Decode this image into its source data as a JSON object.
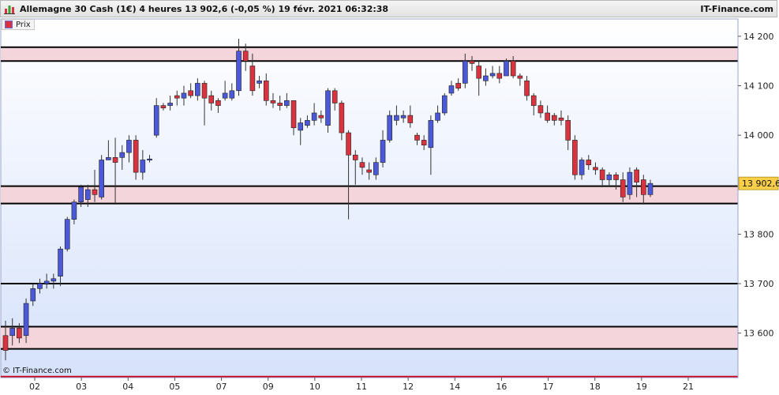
{
  "header": {
    "title": "Allemagne 30 Cash (1€) 4 heures 13 902,6 (-0,05 %) 19 févr. 2021 06:32:38",
    "brand": "IT-Finance.com"
  },
  "legend": {
    "label": "Prix"
  },
  "footer": {
    "copyright": "© IT-Finance.com"
  },
  "colors": {
    "up": "#4b58d8",
    "down": "#d9333f",
    "zone_fill": "#f5d5dc",
    "resistance_line": "#000000",
    "support_line_red": "#d0021b",
    "price_label_bg": "#f9cf4a"
  },
  "chart_data": {
    "type": "candlestick",
    "y_axis": {
      "ticks": [
        {
          "value": 13600,
          "label": "13 600"
        },
        {
          "value": 13700,
          "label": "13 700"
        },
        {
          "value": 13800,
          "label": "13 800"
        },
        {
          "value": 14000,
          "label": "14 000"
        },
        {
          "value": 14100,
          "label": "14 100"
        },
        {
          "value": 14200,
          "label": "14 200"
        }
      ],
      "range": [
        13510,
        14235
      ]
    },
    "x_axis": {
      "labels": [
        "02",
        "03",
        "04",
        "05",
        "07",
        "09",
        "10",
        "11",
        "12",
        "14",
        "16",
        "17",
        "18",
        "19",
        "21"
      ]
    },
    "last_price": {
      "value": 13902.6,
      "label": "13 902,6"
    },
    "zones": [
      {
        "from": 14150,
        "to": 14178
      },
      {
        "from": 13862,
        "to": 13897
      },
      {
        "from": 13568,
        "to": 13613
      }
    ],
    "lines": [
      {
        "value": 13700,
        "color": "#000000"
      },
      {
        "value": 13512,
        "color": "#d0021b"
      }
    ],
    "candles": [
      [
        13595,
        13565,
        13625,
        13545
      ],
      [
        13595,
        13610,
        13630,
        13575
      ],
      [
        13610,
        13590,
        13620,
        13580
      ],
      [
        13595,
        13660,
        13670,
        13580
      ],
      [
        13665,
        13690,
        13700,
        13655
      ],
      [
        13690,
        13700,
        13710,
        13680
      ],
      [
        13700,
        13705,
        13720,
        13690
      ],
      [
        13705,
        13710,
        13720,
        13690
      ],
      [
        13715,
        13770,
        13775,
        13695
      ],
      [
        13770,
        13830,
        13835,
        13765
      ],
      [
        13830,
        13865,
        13870,
        13820
      ],
      [
        13865,
        13895,
        13900,
        13855
      ],
      [
        13870,
        13890,
        13900,
        13855
      ],
      [
        13890,
        13880,
        13930,
        13865
      ],
      [
        13875,
        13950,
        13960,
        13870
      ],
      [
        13950,
        13955,
        13990,
        13950
      ],
      [
        13955,
        13945,
        13995,
        13860
      ],
      [
        13955,
        13965,
        13980,
        13930
      ],
      [
        13965,
        13990,
        14000,
        13945
      ],
      [
        13990,
        13925,
        14000,
        13910
      ],
      [
        13925,
        13950,
        13970,
        13910
      ],
      [
        13950,
        13952,
        13960,
        13945
      ],
      [
        14000,
        14060,
        14075,
        13995
      ],
      [
        14060,
        14055,
        14065,
        14050
      ],
      [
        14060,
        14065,
        14080,
        14050
      ],
      [
        14080,
        14075,
        14090,
        14060
      ],
      [
        14075,
        14085,
        14100,
        14060
      ],
      [
        14090,
        14080,
        14105,
        14075
      ],
      [
        14080,
        14105,
        14115,
        14070
      ],
      [
        14105,
        14075,
        14110,
        14020
      ],
      [
        14080,
        14065,
        14090,
        14050
      ],
      [
        14070,
        14060,
        14075,
        14045
      ],
      [
        14075,
        14085,
        14110,
        14070
      ],
      [
        14075,
        14090,
        14105,
        14070
      ],
      [
        14090,
        14170,
        14195,
        14080
      ],
      [
        14170,
        14150,
        14185,
        14130
      ],
      [
        14140,
        14090,
        14165,
        14080
      ],
      [
        14105,
        14110,
        14120,
        14095
      ],
      [
        14110,
        14070,
        14125,
        14060
      ],
      [
        14070,
        14065,
        14085,
        14055
      ],
      [
        14065,
        14060,
        14080,
        14050
      ],
      [
        14060,
        14070,
        14085,
        14055
      ],
      [
        14070,
        14015,
        14070,
        14000
      ],
      [
        14010,
        14025,
        14035,
        13980
      ],
      [
        14020,
        14030,
        14040,
        14015
      ],
      [
        14030,
        14045,
        14065,
        14020
      ],
      [
        14040,
        14035,
        14050,
        14025
      ],
      [
        14020,
        14090,
        14095,
        14005
      ],
      [
        14090,
        14065,
        14095,
        14050
      ],
      [
        14065,
        14005,
        14070,
        13990
      ],
      [
        14005,
        13960,
        14010,
        13830
      ],
      [
        13960,
        13950,
        13970,
        13900
      ],
      [
        13945,
        13935,
        13955,
        13920
      ],
      [
        13930,
        13925,
        13945,
        13910
      ],
      [
        13920,
        13945,
        13955,
        13910
      ],
      [
        13945,
        13990,
        14010,
        13935
      ],
      [
        13990,
        14040,
        14050,
        13985
      ],
      [
        14030,
        14040,
        14060,
        14020
      ],
      [
        14035,
        14040,
        14050,
        14025
      ],
      [
        14040,
        14025,
        14060,
        14015
      ],
      [
        14000,
        13990,
        14005,
        13980
      ],
      [
        13990,
        13980,
        14000,
        13970
      ],
      [
        13975,
        14030,
        14040,
        13920
      ],
      [
        14030,
        14045,
        14060,
        14025
      ],
      [
        14045,
        14080,
        14085,
        14040
      ],
      [
        14085,
        14100,
        14110,
        14080
      ],
      [
        14105,
        14095,
        14115,
        14090
      ],
      [
        14105,
        14150,
        14165,
        14095
      ],
      [
        14150,
        14145,
        14160,
        14130
      ],
      [
        14140,
        14115,
        14150,
        14080
      ],
      [
        14110,
        14120,
        14135,
        14100
      ],
      [
        14120,
        14125,
        14140,
        14115
      ],
      [
        14125,
        14115,
        14140,
        14105
      ],
      [
        14120,
        14150,
        14155,
        14120
      ],
      [
        14150,
        14120,
        14160,
        14115
      ],
      [
        14120,
        14115,
        14125,
        14100
      ],
      [
        14110,
        14080,
        14120,
        14070
      ],
      [
        14080,
        14060,
        14085,
        14040
      ],
      [
        14060,
        14045,
        14070,
        14035
      ],
      [
        14045,
        14030,
        14060,
        14025
      ],
      [
        14040,
        14030,
        14045,
        14020
      ],
      [
        14035,
        14030,
        14050,
        14020
      ],
      [
        14030,
        13990,
        14040,
        13970
      ],
      [
        13990,
        13920,
        14000,
        13910
      ],
      [
        13920,
        13950,
        13955,
        13910
      ],
      [
        13950,
        13940,
        13960,
        13930
      ],
      [
        13935,
        13930,
        13945,
        13920
      ],
      [
        13930,
        13910,
        13935,
        13895
      ],
      [
        13910,
        13920,
        13925,
        13895
      ],
      [
        13920,
        13910,
        13925,
        13890
      ],
      [
        13910,
        13875,
        13925,
        13865
      ],
      [
        13880,
        13925,
        13935,
        13870
      ],
      [
        13930,
        13905,
        13935,
        13875
      ],
      [
        13910,
        13880,
        13920,
        13860
      ],
      [
        13880,
        13902.6,
        13910,
        13875
      ]
    ]
  }
}
